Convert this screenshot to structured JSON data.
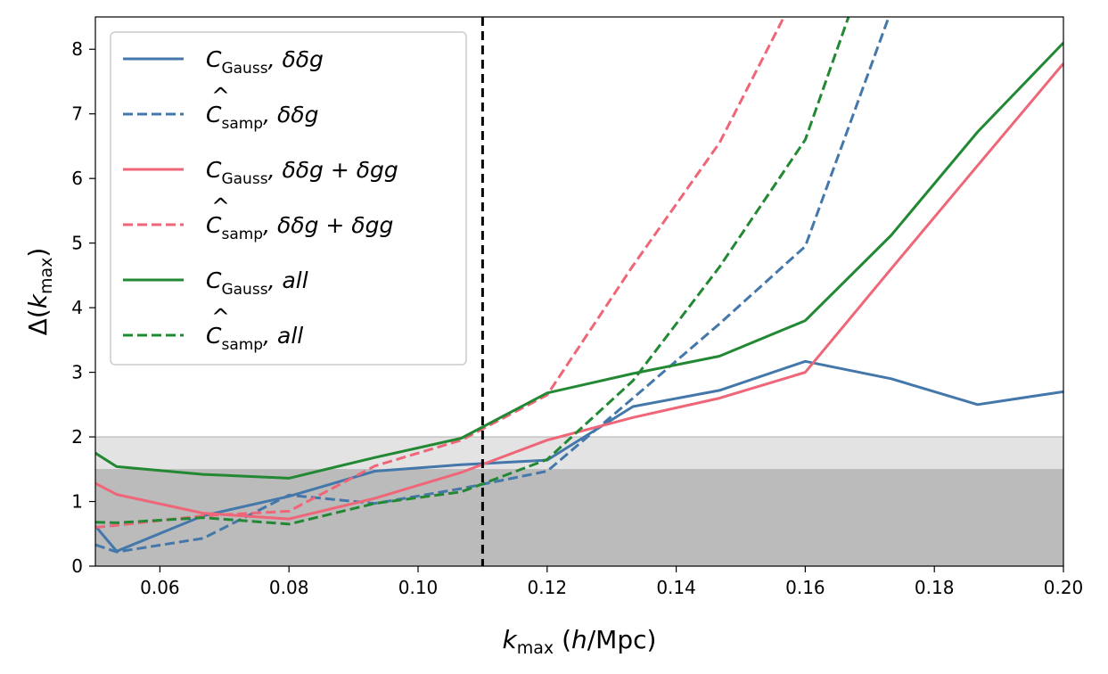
{
  "chart_data": {
    "type": "line",
    "xlabel": "k_max (h/Mpc)",
    "ylabel": "Δ(k_max)",
    "xlim": [
      0.05,
      0.2
    ],
    "ylim": [
      0,
      8.5
    ],
    "xticks": [
      0.06,
      0.08,
      0.1,
      0.12,
      0.14,
      0.16,
      0.18,
      0.2
    ],
    "xtick_labels": [
      "0.06",
      "0.08",
      "0.10",
      "0.12",
      "0.14",
      "0.16",
      "0.18",
      "0.20"
    ],
    "yticks": [
      0,
      1,
      2,
      3,
      4,
      5,
      6,
      7,
      8
    ],
    "ytick_labels": [
      "0",
      "1",
      "2",
      "3",
      "4",
      "5",
      "6",
      "7",
      "8"
    ],
    "shaded_bands": [
      {
        "y0": 0,
        "y1": 1.5,
        "color": "#bbbbbb"
      },
      {
        "y0": 1.5,
        "y1": 2.0,
        "color": "#e3e3e3"
      }
    ],
    "vline": {
      "x": 0.11,
      "style": "dashed",
      "color": "#000000"
    },
    "legend_position": "upper-left",
    "series": [
      {
        "name": "C_Gauss, δδg",
        "label_base": "C",
        "label_sub": "Gauss",
        "label_hat": false,
        "label_rest": ", δδg",
        "color": "#4477aa",
        "dash": false,
        "x": [
          0.05,
          0.0533,
          0.0667,
          0.08,
          0.0933,
          0.1067,
          0.12,
          0.1333,
          0.1467,
          0.16,
          0.1733,
          0.1867,
          0.2
        ],
        "y": [
          0.62,
          0.23,
          0.78,
          1.08,
          1.47,
          1.57,
          1.64,
          2.47,
          2.72,
          3.17,
          2.9,
          2.5,
          2.7
        ]
      },
      {
        "name": "Ĉ_samp, δδg",
        "label_base": "C",
        "label_sub": "samp",
        "label_hat": true,
        "label_rest": ", δδg",
        "color": "#4477aa",
        "dash": true,
        "x": [
          0.05,
          0.0533,
          0.0667,
          0.08,
          0.0933,
          0.1067,
          0.12,
          0.1333,
          0.1467,
          0.16,
          0.1733
        ],
        "y": [
          0.33,
          0.22,
          0.43,
          1.1,
          0.97,
          1.2,
          1.47,
          2.6,
          3.75,
          4.95,
          8.6
        ]
      },
      {
        "name": "C_Gauss, δδg+δgg",
        "label_base": "C",
        "label_sub": "Gauss",
        "label_hat": false,
        "label_rest": ", δδg + δgg",
        "color": "#ee6677",
        "dash": false,
        "x": [
          0.05,
          0.0533,
          0.0667,
          0.08,
          0.0933,
          0.1067,
          0.12,
          0.1333,
          0.1467,
          0.16,
          0.1733,
          0.1867,
          0.2
        ],
        "y": [
          1.28,
          1.11,
          0.82,
          0.73,
          1.05,
          1.45,
          1.95,
          2.3,
          2.6,
          3.0,
          4.6,
          6.2,
          7.78
        ]
      },
      {
        "name": "Ĉ_samp, δδg+δgg",
        "label_base": "C",
        "label_sub": "samp",
        "label_hat": true,
        "label_rest": ", δδg + δgg",
        "color": "#ee6677",
        "dash": true,
        "x": [
          0.05,
          0.0533,
          0.0667,
          0.08,
          0.0933,
          0.1067,
          0.12,
          0.1333,
          0.1467,
          0.1567
        ],
        "y": [
          0.6,
          0.63,
          0.78,
          0.85,
          1.55,
          1.95,
          2.65,
          4.65,
          6.55,
          8.5
        ]
      },
      {
        "name": "C_Gauss, all",
        "label_base": "C",
        "label_sub": "Gauss",
        "label_hat": false,
        "label_rest": ", all",
        "color": "#228833",
        "dash": false,
        "x": [
          0.05,
          0.0533,
          0.0667,
          0.08,
          0.0933,
          0.1067,
          0.12,
          0.1333,
          0.1467,
          0.16,
          0.1733,
          0.1867,
          0.2
        ],
        "y": [
          1.75,
          1.54,
          1.42,
          1.36,
          1.68,
          1.98,
          2.68,
          2.98,
          3.25,
          3.8,
          5.12,
          6.72,
          8.1
        ]
      },
      {
        "name": "Ĉ_samp, all",
        "label_base": "C",
        "label_sub": "samp",
        "label_hat": true,
        "label_rest": ", all",
        "color": "#228833",
        "dash": true,
        "x": [
          0.05,
          0.0533,
          0.0667,
          0.08,
          0.0933,
          0.1067,
          0.12,
          0.1333,
          0.1467,
          0.16,
          0.1667
        ],
        "y": [
          0.68,
          0.67,
          0.75,
          0.65,
          0.97,
          1.15,
          1.65,
          2.87,
          4.63,
          6.6,
          8.5
        ]
      }
    ]
  }
}
